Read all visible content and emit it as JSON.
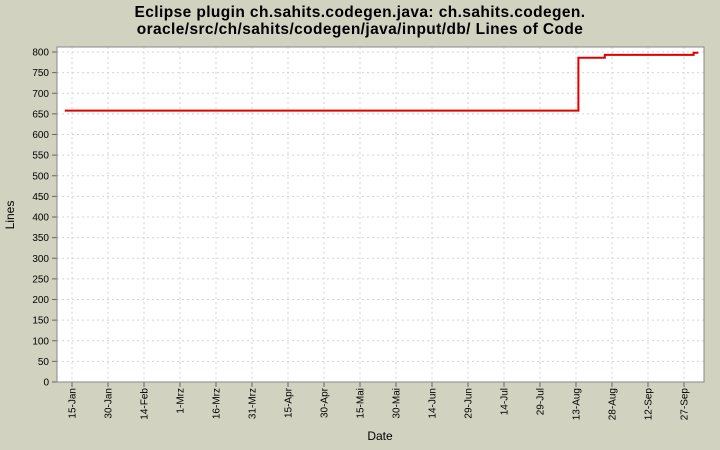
{
  "title": {
    "line1": "Eclipse plugin ch.sahits.codegen.java: ch.sahits.codegen.",
    "line2": "oracle/src/ch/sahits/codegen/java/input/db/ Lines of Code"
  },
  "colors": {
    "background": "#d2d2c1",
    "plot_background": "#ffffff",
    "gridline": "#d4d4d4",
    "axis_border": "#888888",
    "tick_mark": "#666666",
    "series_line": "#e00000",
    "text": "#000000"
  },
  "chart_data": {
    "type": "line",
    "title": "Eclipse plugin ch.sahits.codegen.java: ch.sahits.codegen.oracle/src/ch/sahits/codegen/java/input/db/ Lines of Code",
    "xlabel": "Date",
    "ylabel": "Lines",
    "ylim": [
      0,
      800
    ],
    "y_ticks": [
      0,
      50,
      100,
      150,
      200,
      250,
      300,
      350,
      400,
      450,
      500,
      550,
      600,
      650,
      700,
      750,
      800
    ],
    "x_ticks": [
      "15-Jan",
      "30-Jan",
      "14-Feb",
      "1-Mrz",
      "16-Mrz",
      "31-Mrz",
      "15-Apr",
      "30-Apr",
      "15-Mai",
      "30-Mai",
      "14-Jun",
      "29-Jun",
      "14-Jul",
      "29-Jul",
      "13-Aug",
      "28-Aug",
      "12-Sep",
      "27-Sep"
    ],
    "x_tick_interval_days": 15,
    "grid": "dashed",
    "legend": "none",
    "series": [
      {
        "name": "Lines of Code",
        "color": "#e00000",
        "step": true,
        "points": [
          {
            "date": "12-Jan",
            "day": -3,
            "value": 658
          },
          {
            "date": "14-Aug",
            "day": 211,
            "value": 658
          },
          {
            "date": "14-Aug",
            "day": 211,
            "value": 786
          },
          {
            "date": "25-Aug",
            "day": 222,
            "value": 786
          },
          {
            "date": "25-Aug",
            "day": 222,
            "value": 793
          },
          {
            "date": "1-Oct",
            "day": 259,
            "value": 793
          },
          {
            "date": "1-Oct",
            "day": 259,
            "value": 798
          },
          {
            "date": "3-Oct",
            "day": 261,
            "value": 798
          }
        ]
      }
    ]
  }
}
